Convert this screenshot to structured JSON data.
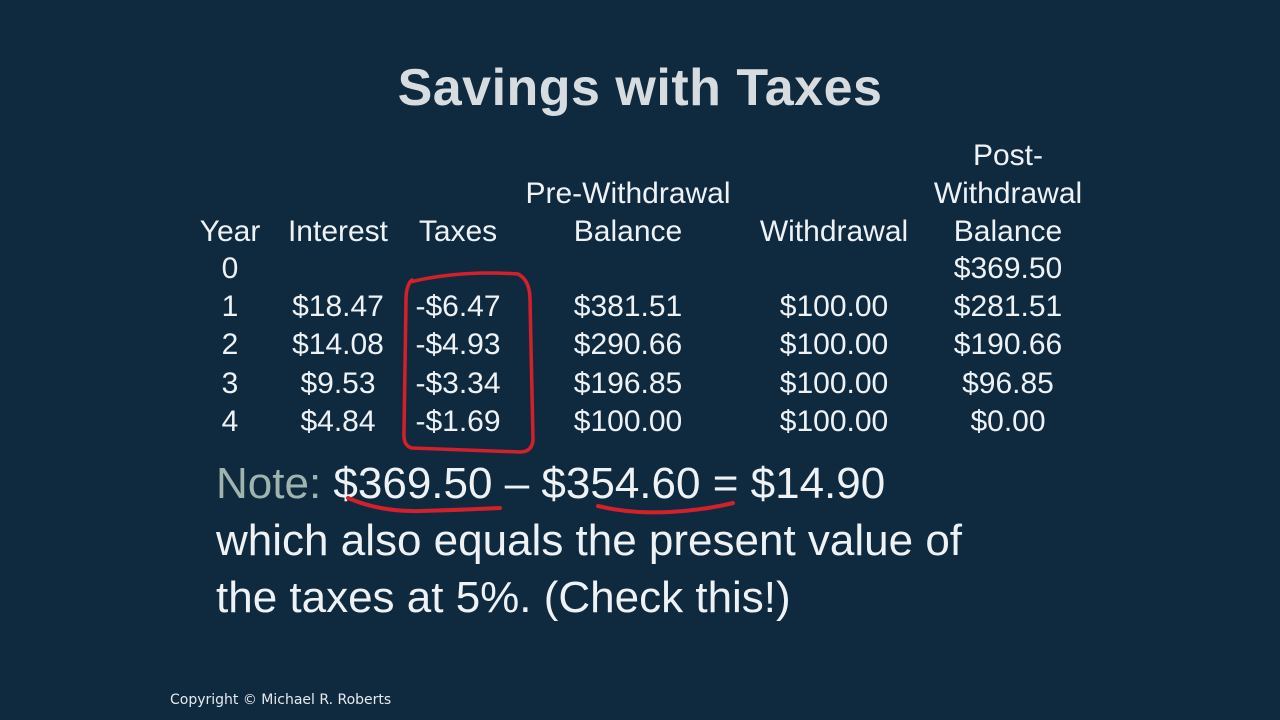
{
  "title": "Savings with Taxes",
  "table": {
    "headers": {
      "year": "Year",
      "interest": "Interest",
      "taxes": "Taxes",
      "pre_withdrawal": [
        "Pre-Withdrawal",
        "Balance"
      ],
      "withdrawal": "Withdrawal",
      "post_withdrawal": [
        "Post-",
        "Withdrawal",
        "Balance"
      ]
    },
    "rows": [
      {
        "year": "0",
        "interest": "",
        "taxes": "",
        "pre": "",
        "withdrawal": "",
        "post": "$369.50"
      },
      {
        "year": "1",
        "interest": "$18.47",
        "taxes": "-$6.47",
        "pre": "$381.51",
        "withdrawal": "$100.00",
        "post": "$281.51"
      },
      {
        "year": "2",
        "interest": "$14.08",
        "taxes": "-$4.93",
        "pre": "$290.66",
        "withdrawal": "$100.00",
        "post": "$190.66"
      },
      {
        "year": "3",
        "interest": "$9.53",
        "taxes": "-$3.34",
        "pre": "$196.85",
        "withdrawal": "$100.00",
        "post": "$96.85"
      },
      {
        "year": "4",
        "interest": "$4.84",
        "taxes": "-$1.69",
        "pre": "$100.00",
        "withdrawal": "$100.00",
        "post": "$0.00"
      }
    ]
  },
  "note": {
    "label": "Note:",
    "value_a": "$369.50",
    "minus": "–",
    "value_b": "$354.60",
    "equals": "= $14.90",
    "line2": "which also equals the present value of",
    "line3": "the taxes at 5%. (Check this!)"
  },
  "copyright": "Copyright © Michael R. Roberts",
  "colors": {
    "background": "#0f2a3f",
    "annotation_red": "#d4202a",
    "note_label": "#9fb4ae"
  }
}
